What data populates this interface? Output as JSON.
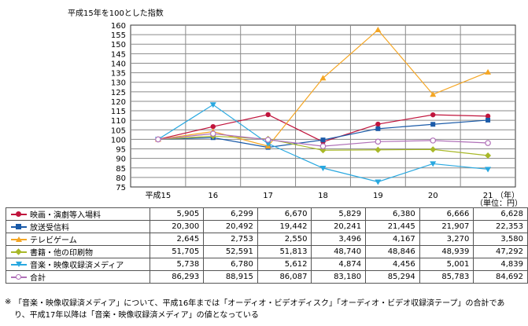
{
  "chart_data": {
    "type": "line",
    "ylabel": "平成15年を100とした指数",
    "xunit": "（年）",
    "ylim": [
      75,
      160
    ],
    "yticks": [
      75,
      80,
      85,
      90,
      95,
      100,
      105,
      110,
      115,
      120,
      125,
      130,
      135,
      140,
      145,
      150,
      155,
      160
    ],
    "categories": [
      "平成15",
      "16",
      "17",
      "18",
      "19",
      "20",
      "21"
    ],
    "grid": true,
    "series": [
      {
        "name": "映画・演劇等入場料",
        "color": "#c0143c",
        "marker": "circle-filled",
        "values": [
          100,
          106.7,
          113,
          98.7,
          108,
          112.9,
          112.2
        ]
      },
      {
        "name": "放送受信料",
        "color": "#1a5aa8",
        "marker": "square",
        "values": [
          100,
          100.9,
          95.8,
          99.7,
          105.6,
          107.9,
          110.1
        ]
      },
      {
        "name": "テレビゲーム",
        "color": "#f5a623",
        "marker": "triangle-up",
        "values": [
          100,
          104.1,
          96.4,
          132.2,
          157.5,
          123.6,
          135.3
        ]
      },
      {
        "name": "書籍・他の印刷物",
        "color": "#a8b828",
        "marker": "diamond",
        "values": [
          100,
          101.7,
          100.2,
          94.3,
          94.5,
          94.7,
          91.5
        ]
      },
      {
        "name": "音楽・映像収録済メディア",
        "color": "#28a8e0",
        "marker": "triangle-down",
        "values": [
          100,
          118.2,
          97.8,
          84.9,
          77.7,
          87.2,
          84.3
        ]
      },
      {
        "name": "合計",
        "color": "#b070b8",
        "marker": "circle-open",
        "values": [
          100,
          103.0,
          99.8,
          96.4,
          98.8,
          99.4,
          98.1
        ]
      }
    ]
  },
  "table": {
    "unit": "（単位：円）",
    "rows": [
      {
        "label": "映画・演劇等入場料",
        "values": [
          "5,905",
          "6,299",
          "6,670",
          "5,829",
          "6,380",
          "6,666",
          "6,628"
        ]
      },
      {
        "label": "放送受信料",
        "values": [
          "20,300",
          "20,492",
          "19,442",
          "20,241",
          "21,445",
          "21,907",
          "22,353"
        ]
      },
      {
        "label": "テレビゲーム",
        "values": [
          "2,645",
          "2,753",
          "2,550",
          "3,496",
          "4,167",
          "3,270",
          "3,580"
        ]
      },
      {
        "label": "書籍・他の印刷物",
        "values": [
          "51,705",
          "52,591",
          "51,813",
          "48,740",
          "48,846",
          "48,939",
          "47,292"
        ]
      },
      {
        "label": "音楽・映像収録済メディア",
        "values": [
          "5,738",
          "6,780",
          "5,612",
          "4,874",
          "4,456",
          "5,001",
          "4,839"
        ]
      },
      {
        "label": "合計",
        "values": [
          "86,293",
          "88,915",
          "86,087",
          "83,180",
          "85,294",
          "85,783",
          "84,692"
        ]
      }
    ]
  },
  "note": {
    "mark": "※",
    "line1": "「音楽・映像収録済メディア」について、平成16年までは「オーディオ・ビデオディスク」「オーディオ・ビデオ収録済テープ」の合計であ",
    "line2": "り、平成17年以降は「音楽・映像収録済メディア」の値となっている"
  }
}
